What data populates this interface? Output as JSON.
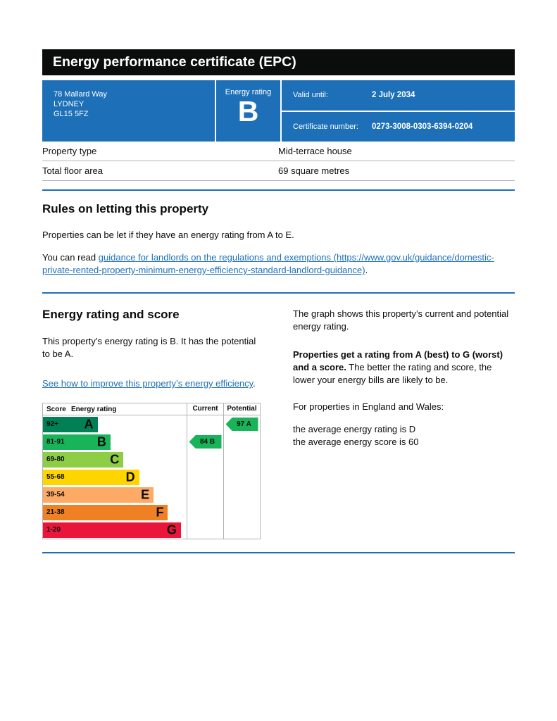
{
  "header": {
    "title": "Energy performance certificate (EPC)"
  },
  "summary": {
    "address_line1": "78 Mallard Way",
    "address_line2": "LYDNEY",
    "address_line3": "GL15 5FZ",
    "energy_rating_label": "Energy rating",
    "energy_rating_value": "B",
    "valid_until_label": "Valid until:",
    "valid_until_value": "2 July 2034",
    "certificate_number_label": "Certificate number:",
    "certificate_number_value": "0273-3008-0303-6394-0204"
  },
  "property_details": {
    "property_type_label": "Property type",
    "property_type_value": "Mid-terrace house",
    "floor_area_label": "Total floor area",
    "floor_area_value": "69 square metres"
  },
  "rules": {
    "heading": "Rules on letting this property",
    "para1": "Properties can be let if they have an energy rating from A to E.",
    "para2_prefix": "You can read ",
    "para2_link": "guidance for landlords on the regulations and exemptions (https://www.gov.uk/guidance/domestic-private-rented-property-minimum-energy-efficiency-standard-landlord-guidance)",
    "para2_suffix": "."
  },
  "rating_section": {
    "heading": "Energy rating and score",
    "para1": "This property’s energy rating is B. It has the potential to be A.",
    "link": "See how to improve this property’s energy efficiency",
    "link_suffix": ".",
    "right_para1": "The graph shows this property’s current and potential energy rating.",
    "right_para2_bold": "Properties get a rating from A (best) to G (worst) and a score.",
    "right_para2_rest": " The better the rating and score, the lower your energy bills are likely to be.",
    "right_para3": "For properties in England and Wales:",
    "right_para4_line1": "the average energy rating is D",
    "right_para4_line2": "the average energy score is 60"
  },
  "chart_data": {
    "type": "bar",
    "title": "Energy rating and score",
    "headers": {
      "score": "Score",
      "rating": "Energy rating",
      "current": "Current",
      "potential": "Potential"
    },
    "bands": [
      {
        "score": "92+",
        "letter": "A",
        "color": "#008054",
        "width_pct": 38
      },
      {
        "score": "81-91",
        "letter": "B",
        "color": "#19b459",
        "width_pct": 47
      },
      {
        "score": "69-80",
        "letter": "C",
        "color": "#8dce46",
        "width_pct": 56
      },
      {
        "score": "55-68",
        "letter": "D",
        "color": "#ffd500",
        "width_pct": 67
      },
      {
        "score": "39-54",
        "letter": "E",
        "color": "#fcaa65",
        "width_pct": 77
      },
      {
        "score": "21-38",
        "letter": "F",
        "color": "#ef8023",
        "width_pct": 87
      },
      {
        "score": "1-20",
        "letter": "G",
        "color": "#e9153b",
        "width_pct": 96
      }
    ],
    "current": {
      "label": "84 B",
      "score": 84,
      "letter": "B",
      "band_index": 1,
      "color": "#19b459"
    },
    "potential": {
      "label": "97 A",
      "score": 97,
      "letter": "A",
      "band_index": 0,
      "color": "#19b459"
    }
  },
  "colors": {
    "govuk_blue": "#1d70b8",
    "govuk_black": "#0b0c0c",
    "link_blue": "#1d70b8",
    "border_grey": "#b1b4b6"
  }
}
